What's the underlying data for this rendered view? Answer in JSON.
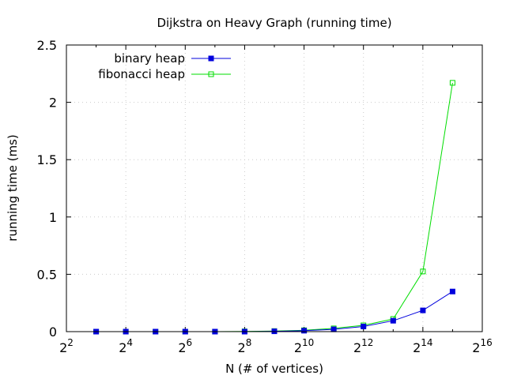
{
  "chart_data": {
    "type": "line",
    "title": "Dijkstra on Heavy Graph (running time)",
    "xlabel": "N (# of vertices)",
    "ylabel": "running time (ms)",
    "x_scale": "log2",
    "xlim_exponent": [
      2,
      16
    ],
    "ylim": [
      0,
      2.5
    ],
    "x_ticks": [
      {
        "base": "2",
        "exp": "2"
      },
      {
        "base": "2",
        "exp": "4"
      },
      {
        "base": "2",
        "exp": "6"
      },
      {
        "base": "2",
        "exp": "8"
      },
      {
        "base": "2",
        "exp": "10"
      },
      {
        "base": "2",
        "exp": "12"
      },
      {
        "base": "2",
        "exp": "14"
      },
      {
        "base": "2",
        "exp": "16"
      }
    ],
    "y_ticks": [
      "0",
      "0.5",
      "1",
      "1.5",
      "2",
      "2.5"
    ],
    "y_tick_values": [
      0,
      0.5,
      1,
      1.5,
      2,
      2.5
    ],
    "grid": true,
    "legend_position": "top-left",
    "x": [
      8,
      16,
      32,
      64,
      128,
      256,
      512,
      1024,
      2048,
      4096,
      8192,
      16384,
      32768
    ],
    "series": [
      {
        "name": "binary heap",
        "color": "#0000dd",
        "marker": "filled-square",
        "values": [
          0.0,
          0.0,
          0.0,
          0.0,
          0.0,
          0.0,
          0.003,
          0.008,
          0.02,
          0.045,
          0.095,
          0.185,
          0.35
        ]
      },
      {
        "name": "fibonacci heap",
        "color": "#00dd00",
        "marker": "open-square",
        "values": [
          0.0,
          0.0,
          0.0,
          0.0,
          0.0,
          0.002,
          0.005,
          0.012,
          0.028,
          0.055,
          0.11,
          0.525,
          2.17
        ]
      }
    ]
  }
}
